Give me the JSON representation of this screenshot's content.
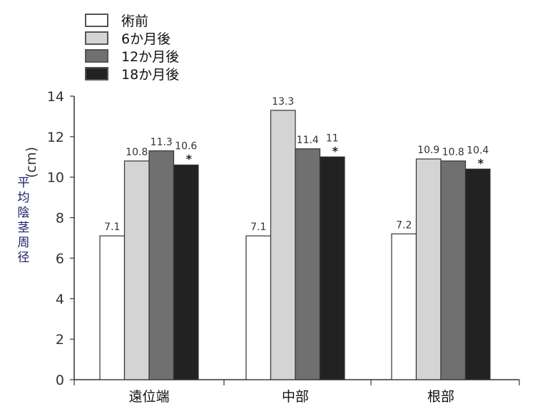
{
  "chart_data": {
    "type": "bar",
    "title": "",
    "xlabel": "",
    "ylabel": "平均陰茎周径",
    "ylabel_unit": "(cm)",
    "ylim": [
      0,
      14
    ],
    "yticks": [
      0,
      2,
      4,
      6,
      8,
      10,
      12,
      14
    ],
    "categories": [
      "遠位端",
      "中部",
      "根部"
    ],
    "series": [
      {
        "name": "術前",
        "color": "#ffffff",
        "values": [
          7.1,
          7.1,
          7.2
        ],
        "labels": [
          "7.1",
          "7.1",
          "7.2"
        ]
      },
      {
        "name": "6か月後",
        "color": "#d4d4d4",
        "values": [
          10.8,
          13.3,
          10.9
        ],
        "labels": [
          "10.8",
          "13.3",
          "10.9"
        ]
      },
      {
        "name": "12か月後",
        "color": "#707070",
        "values": [
          11.3,
          11.4,
          10.8
        ],
        "labels": [
          "11.3",
          "11.4",
          "10.8"
        ]
      },
      {
        "name": "18か月後",
        "color": "#222222",
        "values": [
          10.6,
          11,
          10.4
        ],
        "labels": [
          "10.6",
          "11",
          "10.4"
        ],
        "annotation": "*"
      }
    ],
    "legend": "top-left",
    "grid": false
  }
}
